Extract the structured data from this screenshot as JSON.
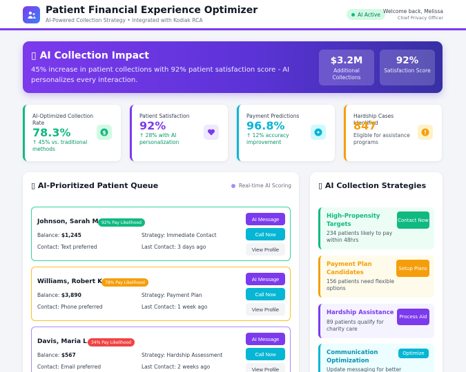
{
  "header": {
    "title": "Patient Financial Experience Optimizer",
    "subtitle": "AI-Powered Collection Strategy • Integrated with Kodiak RCA",
    "ai_status": "AI Active",
    "welcome": "Welcome back, Melissa",
    "role": "Chief Privacy Officer"
  },
  "hero": {
    "title": "AI Collection Impact",
    "description": "45% increase in patient collections with 92% patient satisfaction score - AI personalizes every interaction.",
    "stats": [
      {
        "value": "$3.2M",
        "label": "Additional Collections"
      },
      {
        "value": "92%",
        "label": "Satisfaction Score"
      }
    ]
  },
  "kpis": [
    {
      "title": "AI-Optimized Collection Rate",
      "value": "78.3%",
      "sub": "↑ 45% vs. traditional methods",
      "color": "#10b981",
      "icon": "dollar-icon"
    },
    {
      "title": "Patient Satisfaction",
      "value": "92%",
      "sub": "↑ 28% with AI personalization",
      "color": "#7c3aed",
      "icon": "heart-icon"
    },
    {
      "title": "Payment Predictions",
      "value": "96.8%",
      "sub": "↑ 12% accuracy improvement",
      "color": "#06b6d4",
      "icon": "target-icon"
    },
    {
      "title": "Hardship Cases Identified",
      "value": "847",
      "sub": "Eligible for assistance programs",
      "color": "#f59e0b",
      "icon": "alert-icon"
    }
  ],
  "queue": {
    "title": "AI-Prioritized Patient Queue",
    "realtime": "Real-time AI Scoring",
    "patients": [
      {
        "name": "Johnson, Sarah M.",
        "likelihood": "92% Pay Likelihood",
        "balance_label": "Balance:",
        "balance": "$1,245",
        "strategy_label": "Strategy:",
        "strategy": "Immediate Contact",
        "contact_label": "Contact:",
        "contact": "Text preferred",
        "last_label": "Last Contact:",
        "last": "3 days ago",
        "color": "#10b981"
      },
      {
        "name": "Williams, Robert K.",
        "likelihood": "78% Pay Likelihood",
        "balance_label": "Balance:",
        "balance": "$3,890",
        "strategy_label": "Strategy:",
        "strategy": "Payment Plan",
        "contact_label": "Contact:",
        "contact": "Phone preferred",
        "last_label": "Last Contact:",
        "last": "1 week ago",
        "color": "#f59e0b"
      },
      {
        "name": "Davis, Maria L.",
        "likelihood": "34% Pay Likelihood",
        "balance_label": "Balance:",
        "balance": "$567",
        "strategy_label": "Strategy:",
        "strategy": "Hardship Assessment",
        "contact_label": "Contact:",
        "contact": "Email preferred",
        "last_label": "Last Contact:",
        "last": "2 weeks ago",
        "color": "#ef4444"
      }
    ],
    "buttons": {
      "message": "AI Message",
      "call": "Call Now",
      "view": "View Profile"
    }
  },
  "strategies": {
    "title": "AI Collection Strategies",
    "items": [
      {
        "title": "High-Propensity Targets",
        "desc": "234 patients likely to pay within 48hrs",
        "button": "Contact Now",
        "color": "#10b981"
      },
      {
        "title": "Payment Plan Candidates",
        "desc": "156 patients need flexible options",
        "button": "Setup Plans",
        "color": "#f59e0b"
      },
      {
        "title": "Hardship Assistance",
        "desc": "89 patients qualify for charity care",
        "button": "Process Aid",
        "color": "#7c3aed"
      },
      {
        "title": "Communication Optimization",
        "desc": "Update messaging for better",
        "button": "Optimize",
        "color": "#06b6d4"
      }
    ]
  }
}
